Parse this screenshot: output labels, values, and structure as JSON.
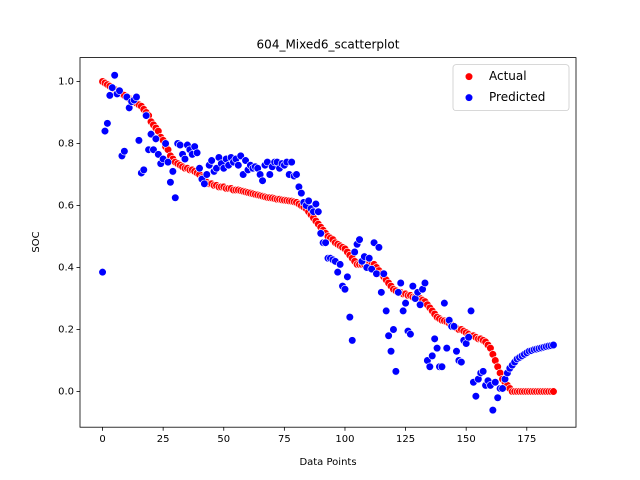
{
  "chart_data": {
    "type": "scatter",
    "title": "604_Mixed6_scatterplot",
    "x_label": "Data Points",
    "y_label": "SOC",
    "x": [
      0,
      1,
      2,
      3,
      4,
      5,
      6,
      7,
      8,
      9,
      10,
      11,
      12,
      13,
      14,
      15,
      16,
      17,
      18,
      19,
      20,
      21,
      22,
      23,
      24,
      25,
      26,
      27,
      28,
      29,
      30,
      31,
      32,
      33,
      34,
      35,
      36,
      37,
      38,
      39,
      40,
      41,
      42,
      43,
      44,
      45,
      46,
      47,
      48,
      49,
      50,
      51,
      52,
      53,
      54,
      55,
      56,
      57,
      58,
      59,
      60,
      61,
      62,
      63,
      64,
      65,
      66,
      67,
      68,
      69,
      70,
      71,
      72,
      73,
      74,
      75,
      76,
      77,
      78,
      79,
      80,
      81,
      82,
      83,
      84,
      85,
      86,
      87,
      88,
      89,
      90,
      91,
      92,
      93,
      94,
      95,
      96,
      97,
      98,
      99,
      100,
      101,
      102,
      103,
      104,
      105,
      106,
      107,
      108,
      109,
      110,
      111,
      112,
      113,
      114,
      115,
      116,
      117,
      118,
      119,
      120,
      121,
      122,
      123,
      124,
      125,
      126,
      127,
      128,
      129,
      130,
      131,
      132,
      133,
      134,
      135,
      136,
      137,
      138,
      139,
      140,
      141,
      142,
      143,
      144,
      145,
      146,
      147,
      148,
      149,
      150,
      151,
      152,
      153,
      154,
      155,
      156,
      157,
      158,
      159,
      160,
      161,
      162,
      163,
      164,
      165,
      166,
      167,
      168,
      169,
      170,
      171,
      172,
      173,
      174,
      175,
      176,
      177,
      178,
      179,
      180,
      181,
      182,
      183,
      184,
      185,
      186
    ],
    "series": [
      {
        "name": "Actual",
        "color": "#ff0000",
        "values": [
          1.0,
          0.995,
          0.99,
          0.985,
          0.98,
          0.975,
          0.97,
          0.965,
          0.96,
          0.955,
          0.95,
          0.945,
          0.94,
          0.935,
          0.93,
          0.925,
          0.92,
          0.91,
          0.9,
          0.89,
          0.87,
          0.86,
          0.85,
          0.84,
          0.82,
          0.81,
          0.79,
          0.78,
          0.76,
          0.75,
          0.74,
          0.735,
          0.73,
          0.725,
          0.72,
          0.72,
          0.715,
          0.715,
          0.71,
          0.705,
          0.7,
          0.69,
          0.68,
          0.675,
          0.67,
          0.67,
          0.665,
          0.665,
          0.66,
          0.66,
          0.66,
          0.655,
          0.655,
          0.655,
          0.65,
          0.65,
          0.65,
          0.648,
          0.646,
          0.644,
          0.642,
          0.64,
          0.638,
          0.636,
          0.634,
          0.632,
          0.63,
          0.628,
          0.626,
          0.625,
          0.624,
          0.622,
          0.62,
          0.62,
          0.618,
          0.617,
          0.616,
          0.615,
          0.614,
          0.612,
          0.61,
          0.605,
          0.6,
          0.595,
          0.59,
          0.58,
          0.57,
          0.56,
          0.55,
          0.54,
          0.53,
          0.52,
          0.51,
          0.5,
          0.495,
          0.49,
          0.48,
          0.475,
          0.47,
          0.465,
          0.46,
          0.45,
          0.44,
          0.43,
          0.42,
          0.41,
          0.41,
          0.41,
          0.41,
          0.41,
          0.41,
          0.41,
          0.41,
          0.4,
          0.39,
          0.38,
          0.37,
          0.36,
          0.35,
          0.34,
          0.33,
          0.325,
          0.32,
          0.32,
          0.315,
          0.315,
          0.31,
          0.31,
          0.305,
          0.305,
          0.3,
          0.3,
          0.295,
          0.29,
          0.28,
          0.27,
          0.26,
          0.25,
          0.24,
          0.235,
          0.23,
          0.228,
          0.225,
          0.22,
          0.215,
          0.21,
          0.205,
          0.2,
          0.2,
          0.195,
          0.19,
          0.185,
          0.18,
          0.18,
          0.175,
          0.17,
          0.17,
          0.165,
          0.16,
          0.15,
          0.14,
          0.12,
          0.1,
          0.08,
          0.06,
          0.04,
          0.03,
          0.02,
          0.01,
          0.0,
          0.0,
          0.0,
          0.0,
          0.0,
          0.0,
          0.0,
          0.0,
          0.0,
          0.0,
          0.0,
          0.0,
          0.0,
          0.0,
          0.0,
          0.0,
          0.0,
          0.0
        ]
      },
      {
        "name": "Predicted",
        "color": "#0000ff",
        "values": [
          0.385,
          0.84,
          0.865,
          0.955,
          0.98,
          1.02,
          0.96,
          0.97,
          0.76,
          0.775,
          0.95,
          0.915,
          0.935,
          0.94,
          0.95,
          0.81,
          0.705,
          0.715,
          0.89,
          0.78,
          0.83,
          0.78,
          0.815,
          0.765,
          0.735,
          0.75,
          0.8,
          0.74,
          0.675,
          0.71,
          0.625,
          0.8,
          0.795,
          0.765,
          0.75,
          0.795,
          0.78,
          0.765,
          0.79,
          0.77,
          0.72,
          0.685,
          0.67,
          0.7,
          0.73,
          0.745,
          0.71,
          0.72,
          0.755,
          0.735,
          0.72,
          0.75,
          0.73,
          0.755,
          0.74,
          0.75,
          0.73,
          0.76,
          0.7,
          0.745,
          0.715,
          0.73,
          0.72,
          0.725,
          0.72,
          0.7,
          0.68,
          0.73,
          0.74,
          0.7,
          0.725,
          0.74,
          0.74,
          0.72,
          0.735,
          0.73,
          0.74,
          0.7,
          0.74,
          0.695,
          0.7,
          0.66,
          0.64,
          0.61,
          0.6,
          0.615,
          0.59,
          0.58,
          0.605,
          0.58,
          0.51,
          0.48,
          0.48,
          0.43,
          0.43,
          0.425,
          0.42,
          0.385,
          0.41,
          0.34,
          0.33,
          0.37,
          0.24,
          0.165,
          0.45,
          0.475,
          0.49,
          0.42,
          0.435,
          0.4,
          0.43,
          0.395,
          0.48,
          0.38,
          0.465,
          0.32,
          0.38,
          0.26,
          0.18,
          0.13,
          0.2,
          0.065,
          0.32,
          0.35,
          0.26,
          0.285,
          0.195,
          0.185,
          0.34,
          0.3,
          0.32,
          0.28,
          0.33,
          0.35,
          0.1,
          0.08,
          0.115,
          0.17,
          0.14,
          0.08,
          0.08,
          0.285,
          0.14,
          0.23,
          0.21,
          0.21,
          0.13,
          0.1,
          0.095,
          0.165,
          0.155,
          0.175,
          0.26,
          0.03,
          -0.015,
          0.04,
          0.06,
          0.065,
          0.02,
          0.035,
          0.02,
          -0.06,
          0.03,
          -0.02,
          0.01,
          0.01,
          0.04,
          0.06,
          0.075,
          0.085,
          0.095,
          0.105,
          0.11,
          0.115,
          0.12,
          0.125,
          0.13,
          0.132,
          0.135,
          0.137,
          0.139,
          0.141,
          0.143,
          0.145,
          0.147,
          0.148,
          0.15
        ]
      }
    ],
    "xlim": [
      -9.3,
      195.3
    ],
    "xticks": [
      0,
      25,
      50,
      75,
      100,
      125,
      150,
      175
    ],
    "ylim": [
      -0.115,
      1.077
    ],
    "yticks": [
      {
        "value": 0.0,
        "label": "0.0"
      },
      0.2,
      0.4,
      0.6,
      0.8,
      {
        "value": 1.0,
        "label": "1.0"
      }
    ],
    "legend": "upper right"
  }
}
